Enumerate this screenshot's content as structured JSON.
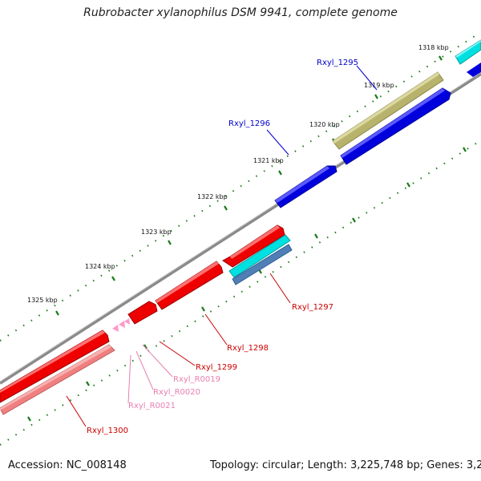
{
  "title": "Rubrobacter xylanophilus DSM 9941, complete genome",
  "footer": {
    "accession": "Accession: NC_008148",
    "summary": "Topology: circular; Length: 3,225,748 bp; Genes: 3,203"
  },
  "kbp_labels": [
    "1318 kbp",
    "1319 kbp",
    "1320 kbp",
    "1321 kbp",
    "1322 kbp",
    "1323 kbp",
    "1324 kbp",
    "1325 kbp"
  ],
  "genes": [
    {
      "label": "Rxyl_1295",
      "color": "#0000cc"
    },
    {
      "label": "Rxyl_1296",
      "color": "#0000cc"
    },
    {
      "label": "Rxyl_1297",
      "color": "#cc0000"
    },
    {
      "label": "Rxyl_1298",
      "color": "#cc0000"
    },
    {
      "label": "Rxyl_1299",
      "color": "#cc0000"
    },
    {
      "label": "Rxyl_R0019",
      "color": "#e87fb0"
    },
    {
      "label": "Rxyl_R0020",
      "color": "#e87fb0"
    },
    {
      "label": "Rxyl_R0021",
      "color": "#e87fb0"
    },
    {
      "label": "Rxyl_1300",
      "color": "#cc0000"
    }
  ],
  "colors": {
    "backbone": "#7a7a7a",
    "tick_green": "#1a7a1a",
    "cds_forward": "#0000ee",
    "cds_reverse": "#ee0000",
    "rrna": "#f08080",
    "rrna_small": "#ff99cc",
    "olive": "#b5b06a",
    "cyan": "#00e5e5",
    "steel": "#4f7fb5"
  }
}
